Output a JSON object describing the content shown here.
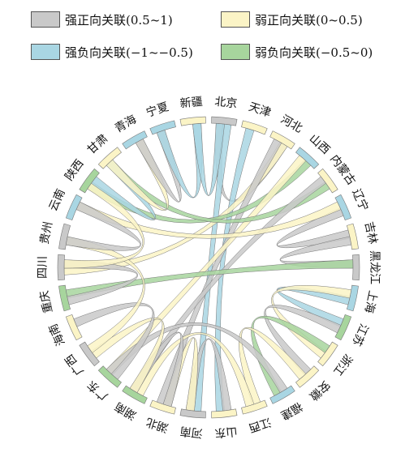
{
  "legend": {
    "items": [
      {
        "label": "强正向关联(0.5~1)",
        "color": "#c9c9c9"
      },
      {
        "label": "弱正向关联(0~0.5)",
        "color": "#fbf4c6"
      },
      {
        "label": "强负向关联(−1~−0.5)",
        "color": "#a9d6e3"
      },
      {
        "label": "弱负向关联(−0.5~0)",
        "color": "#a7d59d"
      }
    ]
  },
  "chart_data": {
    "type": "chord",
    "categories": [
      "强正向关联(0.5~1)",
      "弱正向关联(0~0.5)",
      "强负向关联(−1~−0.5)",
      "弱负向关联(−0.5~0)"
    ],
    "colors": {
      "强正向关联(0.5~1)": "#c9c9c9",
      "弱正向关联(0~0.5)": "#fbf4c6",
      "强负向关联(−1~−0.5)": "#a9d6e3",
      "弱负向关联(−0.5~0)": "#a7d59d"
    },
    "provinces": [
      "北京",
      "天津",
      "河北",
      "山西",
      "内蒙古",
      "辽宁",
      "吉林",
      "黑龙江",
      "上海",
      "江苏",
      "浙江",
      "安徽",
      "福建",
      "江西",
      "山东",
      "河南",
      "湖北",
      "湖南",
      "广东",
      "广西",
      "海南",
      "重庆",
      "四川",
      "贵州",
      "云南",
      "陕西",
      "甘肃",
      "青海",
      "宁夏",
      "新疆"
    ],
    "links": [
      {
        "source": "北京",
        "target": "河北",
        "type": "强正向关联(0.5~1)"
      },
      {
        "source": "北京",
        "target": "河南",
        "type": "强负向关联(−1~−0.5)"
      },
      {
        "source": "天津",
        "target": "山东",
        "type": "强负向关联(−1~−0.5)"
      },
      {
        "source": "河北",
        "target": "四川",
        "type": "弱正向关联(0~0.5)"
      },
      {
        "source": "河北",
        "target": "湖北",
        "type": "强正向关联(0.5~1)"
      },
      {
        "source": "山西",
        "target": "陕西",
        "type": "弱负向关联(−0.5~0)"
      },
      {
        "source": "山西",
        "target": "广东",
        "type": "弱正向关联(0~0.5)"
      },
      {
        "source": "内蒙古",
        "target": "甘肃",
        "type": "弱负向关联(−0.5~0)"
      },
      {
        "source": "内蒙古",
        "target": "湖南",
        "type": "强正向关联(0.5~1)"
      },
      {
        "source": "辽宁",
        "target": "吉林",
        "type": "强正向关联(0.5~1)"
      },
      {
        "source": "辽宁",
        "target": "云南",
        "type": "弱正向关联(0~0.5)"
      },
      {
        "source": "吉林",
        "target": "黑龙江",
        "type": "强正向关联(0.5~1)"
      },
      {
        "source": "黑龙江",
        "target": "重庆",
        "type": "弱负向关联(−0.5~0)"
      },
      {
        "source": "上海",
        "target": "江苏",
        "type": "强负向关联(−1~−0.5)"
      },
      {
        "source": "上海",
        "target": "浙江",
        "type": "弱正向关联(0~0.5)"
      },
      {
        "source": "江苏",
        "target": "安徽",
        "type": "强正向关联(0.5~1)"
      },
      {
        "source": "浙江",
        "target": "福建",
        "type": "弱负向关联(−0.5~0)"
      },
      {
        "source": "安徽",
        "target": "江西",
        "type": "弱正向关联(0~0.5)"
      },
      {
        "source": "福建",
        "target": "广东",
        "type": "强正向关联(0.5~1)"
      },
      {
        "source": "江西",
        "target": "湖南",
        "type": "弱正向关联(0~0.5)"
      },
      {
        "source": "山东",
        "target": "河南",
        "type": "强正向关联(0.5~1)"
      },
      {
        "source": "河南",
        "target": "湖北",
        "type": "弱正向关联(0~0.5)"
      },
      {
        "source": "湖北",
        "target": "湖南",
        "type": "强正向关联(0.5~1)"
      },
      {
        "source": "湖南",
        "target": "广西",
        "type": "弱正向关联(0~0.5)"
      },
      {
        "source": "广东",
        "target": "海南",
        "type": "强正向关联(0.5~1)"
      },
      {
        "source": "广西",
        "target": "贵州",
        "type": "弱正向关联(0~0.5)"
      },
      {
        "source": "重庆",
        "target": "四川",
        "type": "强正向关联(0.5~1)"
      },
      {
        "source": "四川",
        "target": "陕西",
        "type": "弱正向关联(0~0.5)"
      },
      {
        "source": "贵州",
        "target": "云南",
        "type": "强正向关联(0.5~1)"
      },
      {
        "source": "陕西",
        "target": "甘肃",
        "type": "强负向关联(−1~−0.5)"
      },
      {
        "source": "甘肃",
        "target": "青海",
        "type": "弱正向关联(0~0.5)"
      },
      {
        "source": "青海",
        "target": "宁夏",
        "type": "强正向关联(0.5~1)"
      },
      {
        "source": "宁夏",
        "target": "新疆",
        "type": "强负向关联(−1~−0.5)"
      },
      {
        "source": "新疆",
        "target": "北京",
        "type": "强负向关联(−1~−0.5)"
      }
    ]
  }
}
